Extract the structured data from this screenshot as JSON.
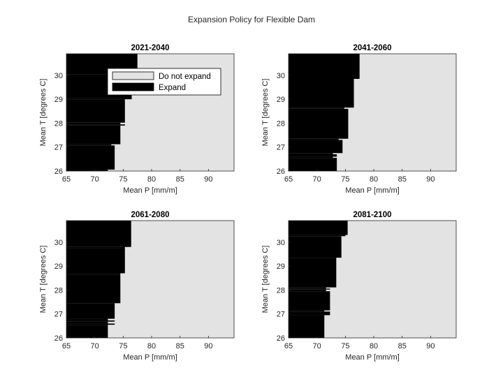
{
  "figure": {
    "title": "Expansion Policy for Flexible Dam"
  },
  "legend": {
    "placement": "upper area of first panel",
    "entries": [
      {
        "label": "Do not expand",
        "color": "#e3e3e3"
      },
      {
        "label": "Expand",
        "color": "#000000"
      }
    ]
  },
  "colors": {
    "expand": "#000000",
    "do_not_expand": "#e3e3e3"
  },
  "chart_data": [
    {
      "type": "heatmap",
      "title": "2021-2040",
      "xlabel": "Mean P [mm/m]",
      "ylabel": "Mean T [degrees C]",
      "xlim": [
        65,
        94.5
      ],
      "ylim": [
        26,
        30.9
      ],
      "xticks": [
        65,
        70,
        75,
        80,
        85,
        90
      ],
      "yticks": [
        26,
        27,
        28,
        29,
        30
      ],
      "expand_boundary": [
        {
          "t_from": 26.0,
          "t_to": 26.06,
          "p": 72.3
        },
        {
          "t_from": 26.06,
          "t_to": 27.07,
          "p": 73.5
        },
        {
          "t_from": 27.07,
          "t_to": 27.12,
          "p": 72.9
        },
        {
          "t_from": 27.12,
          "t_to": 27.9,
          "p": 74.5
        },
        {
          "t_from": 27.9,
          "t_to": 27.95,
          "p": 75.3
        },
        {
          "t_from": 27.95,
          "t_to": 28.02,
          "p": 74.5
        },
        {
          "t_from": 28.02,
          "t_to": 28.07,
          "p": 75.3
        },
        {
          "t_from": 28.07,
          "t_to": 29.0,
          "p": 75.3
        },
        {
          "t_from": 29.0,
          "t_to": 29.06,
          "p": 76.5
        },
        {
          "t_from": 29.06,
          "t_to": 30.05,
          "p": 76.5
        },
        {
          "t_from": 30.05,
          "t_to": 30.9,
          "p": 77.5
        }
      ]
    },
    {
      "type": "heatmap",
      "title": "2041-2060",
      "xlabel": "Mean P [mm/m]",
      "ylabel": "Mean T [degrees C]",
      "xlim": [
        65,
        94.5
      ],
      "ylim": [
        26,
        30.9
      ],
      "xticks": [
        65,
        70,
        75,
        80,
        85,
        90
      ],
      "yticks": [
        26,
        27,
        28,
        29,
        30
      ],
      "expand_boundary": [
        {
          "t_from": 26.0,
          "t_to": 26.55,
          "p": 73.5
        },
        {
          "t_from": 26.55,
          "t_to": 26.6,
          "p": 72.8
        },
        {
          "t_from": 26.6,
          "t_to": 26.7,
          "p": 73.5
        },
        {
          "t_from": 26.7,
          "t_to": 26.75,
          "p": 72.8
        },
        {
          "t_from": 26.75,
          "t_to": 27.3,
          "p": 74.5
        },
        {
          "t_from": 27.3,
          "t_to": 27.35,
          "p": 73.8
        },
        {
          "t_from": 27.35,
          "t_to": 28.6,
          "p": 75.5
        },
        {
          "t_from": 28.6,
          "t_to": 28.65,
          "p": 74.8
        },
        {
          "t_from": 28.65,
          "t_to": 29.85,
          "p": 76.5
        },
        {
          "t_from": 29.85,
          "t_to": 30.9,
          "p": 77.5
        }
      ]
    },
    {
      "type": "heatmap",
      "title": "2061-2080",
      "xlabel": "Mean P [mm/m]",
      "ylabel": "Mean T [degrees C]",
      "xlim": [
        65,
        94.5
      ],
      "ylim": [
        26,
        30.9
      ],
      "xticks": [
        65,
        70,
        75,
        80,
        85,
        90
      ],
      "yticks": [
        26,
        27,
        28,
        29,
        30
      ],
      "expand_boundary": [
        {
          "t_from": 26.0,
          "t_to": 26.55,
          "p": 72.3
        },
        {
          "t_from": 26.55,
          "t_to": 26.6,
          "p": 73.5
        },
        {
          "t_from": 26.6,
          "t_to": 26.68,
          "p": 72.3
        },
        {
          "t_from": 26.68,
          "t_to": 26.73,
          "p": 73.5
        },
        {
          "t_from": 26.73,
          "t_to": 26.8,
          "p": 72.3
        },
        {
          "t_from": 26.8,
          "t_to": 27.45,
          "p": 73.5
        },
        {
          "t_from": 27.45,
          "t_to": 28.65,
          "p": 74.5
        },
        {
          "t_from": 28.65,
          "t_to": 28.7,
          "p": 74.5
        },
        {
          "t_from": 28.7,
          "t_to": 29.75,
          "p": 75.3
        },
        {
          "t_from": 29.75,
          "t_to": 29.8,
          "p": 75.3
        },
        {
          "t_from": 29.8,
          "t_to": 29.85,
          "p": 76.4
        },
        {
          "t_from": 29.85,
          "t_to": 30.9,
          "p": 76.4
        }
      ]
    },
    {
      "type": "heatmap",
      "title": "2081-2100",
      "xlabel": "Mean P [mm/m]",
      "ylabel": "Mean T [degrees C]",
      "xlim": [
        65,
        94.5
      ],
      "ylim": [
        26,
        30.9
      ],
      "xticks": [
        65,
        70,
        75,
        80,
        85,
        90
      ],
      "yticks": [
        26,
        27,
        28,
        29,
        30
      ],
      "expand_boundary": [
        {
          "t_from": 26.0,
          "t_to": 26.95,
          "p": 71.3
        },
        {
          "t_from": 26.95,
          "t_to": 27.1,
          "p": 72.3
        },
        {
          "t_from": 27.1,
          "t_to": 27.15,
          "p": 71.3
        },
        {
          "t_from": 27.15,
          "t_to": 27.95,
          "p": 72.3
        },
        {
          "t_from": 27.95,
          "t_to": 28.02,
          "p": 71.6
        },
        {
          "t_from": 28.02,
          "t_to": 28.06,
          "p": 72.3
        },
        {
          "t_from": 28.06,
          "t_to": 28.11,
          "p": 71.6
        },
        {
          "t_from": 28.11,
          "t_to": 29.35,
          "p": 73.4
        },
        {
          "t_from": 29.35,
          "t_to": 30.25,
          "p": 74.3
        },
        {
          "t_from": 30.25,
          "t_to": 30.3,
          "p": 75.0
        },
        {
          "t_from": 30.3,
          "t_to": 30.9,
          "p": 75.4
        }
      ]
    }
  ]
}
